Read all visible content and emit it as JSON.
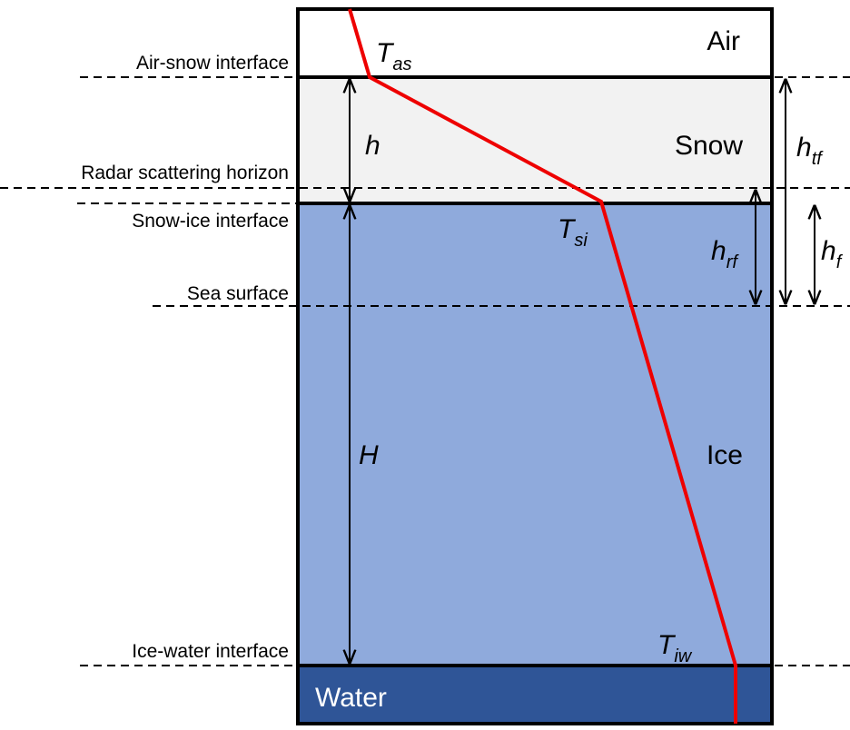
{
  "layers": [
    {
      "label": "Air"
    },
    {
      "label": "Snow"
    },
    {
      "label": "Ice"
    },
    {
      "label": "Water"
    }
  ],
  "interfaces": [
    {
      "label": "Air-snow interface"
    },
    {
      "label": "Radar scattering horizon"
    },
    {
      "label": "Snow-ice interface"
    },
    {
      "label": "Sea surface"
    },
    {
      "label": "Ice-water interface"
    }
  ],
  "dimensions": [
    {
      "symbol": "h"
    },
    {
      "symbol": "H"
    },
    {
      "symbol": "h",
      "subscript": "tf"
    },
    {
      "symbol": "h",
      "subscript": "rf"
    },
    {
      "symbol": "h",
      "subscript": "f"
    }
  ],
  "temperatures": [
    {
      "symbol": "T",
      "subscript": "as"
    },
    {
      "symbol": "T",
      "subscript": "si"
    },
    {
      "symbol": "T",
      "subscript": "iw"
    }
  ]
}
